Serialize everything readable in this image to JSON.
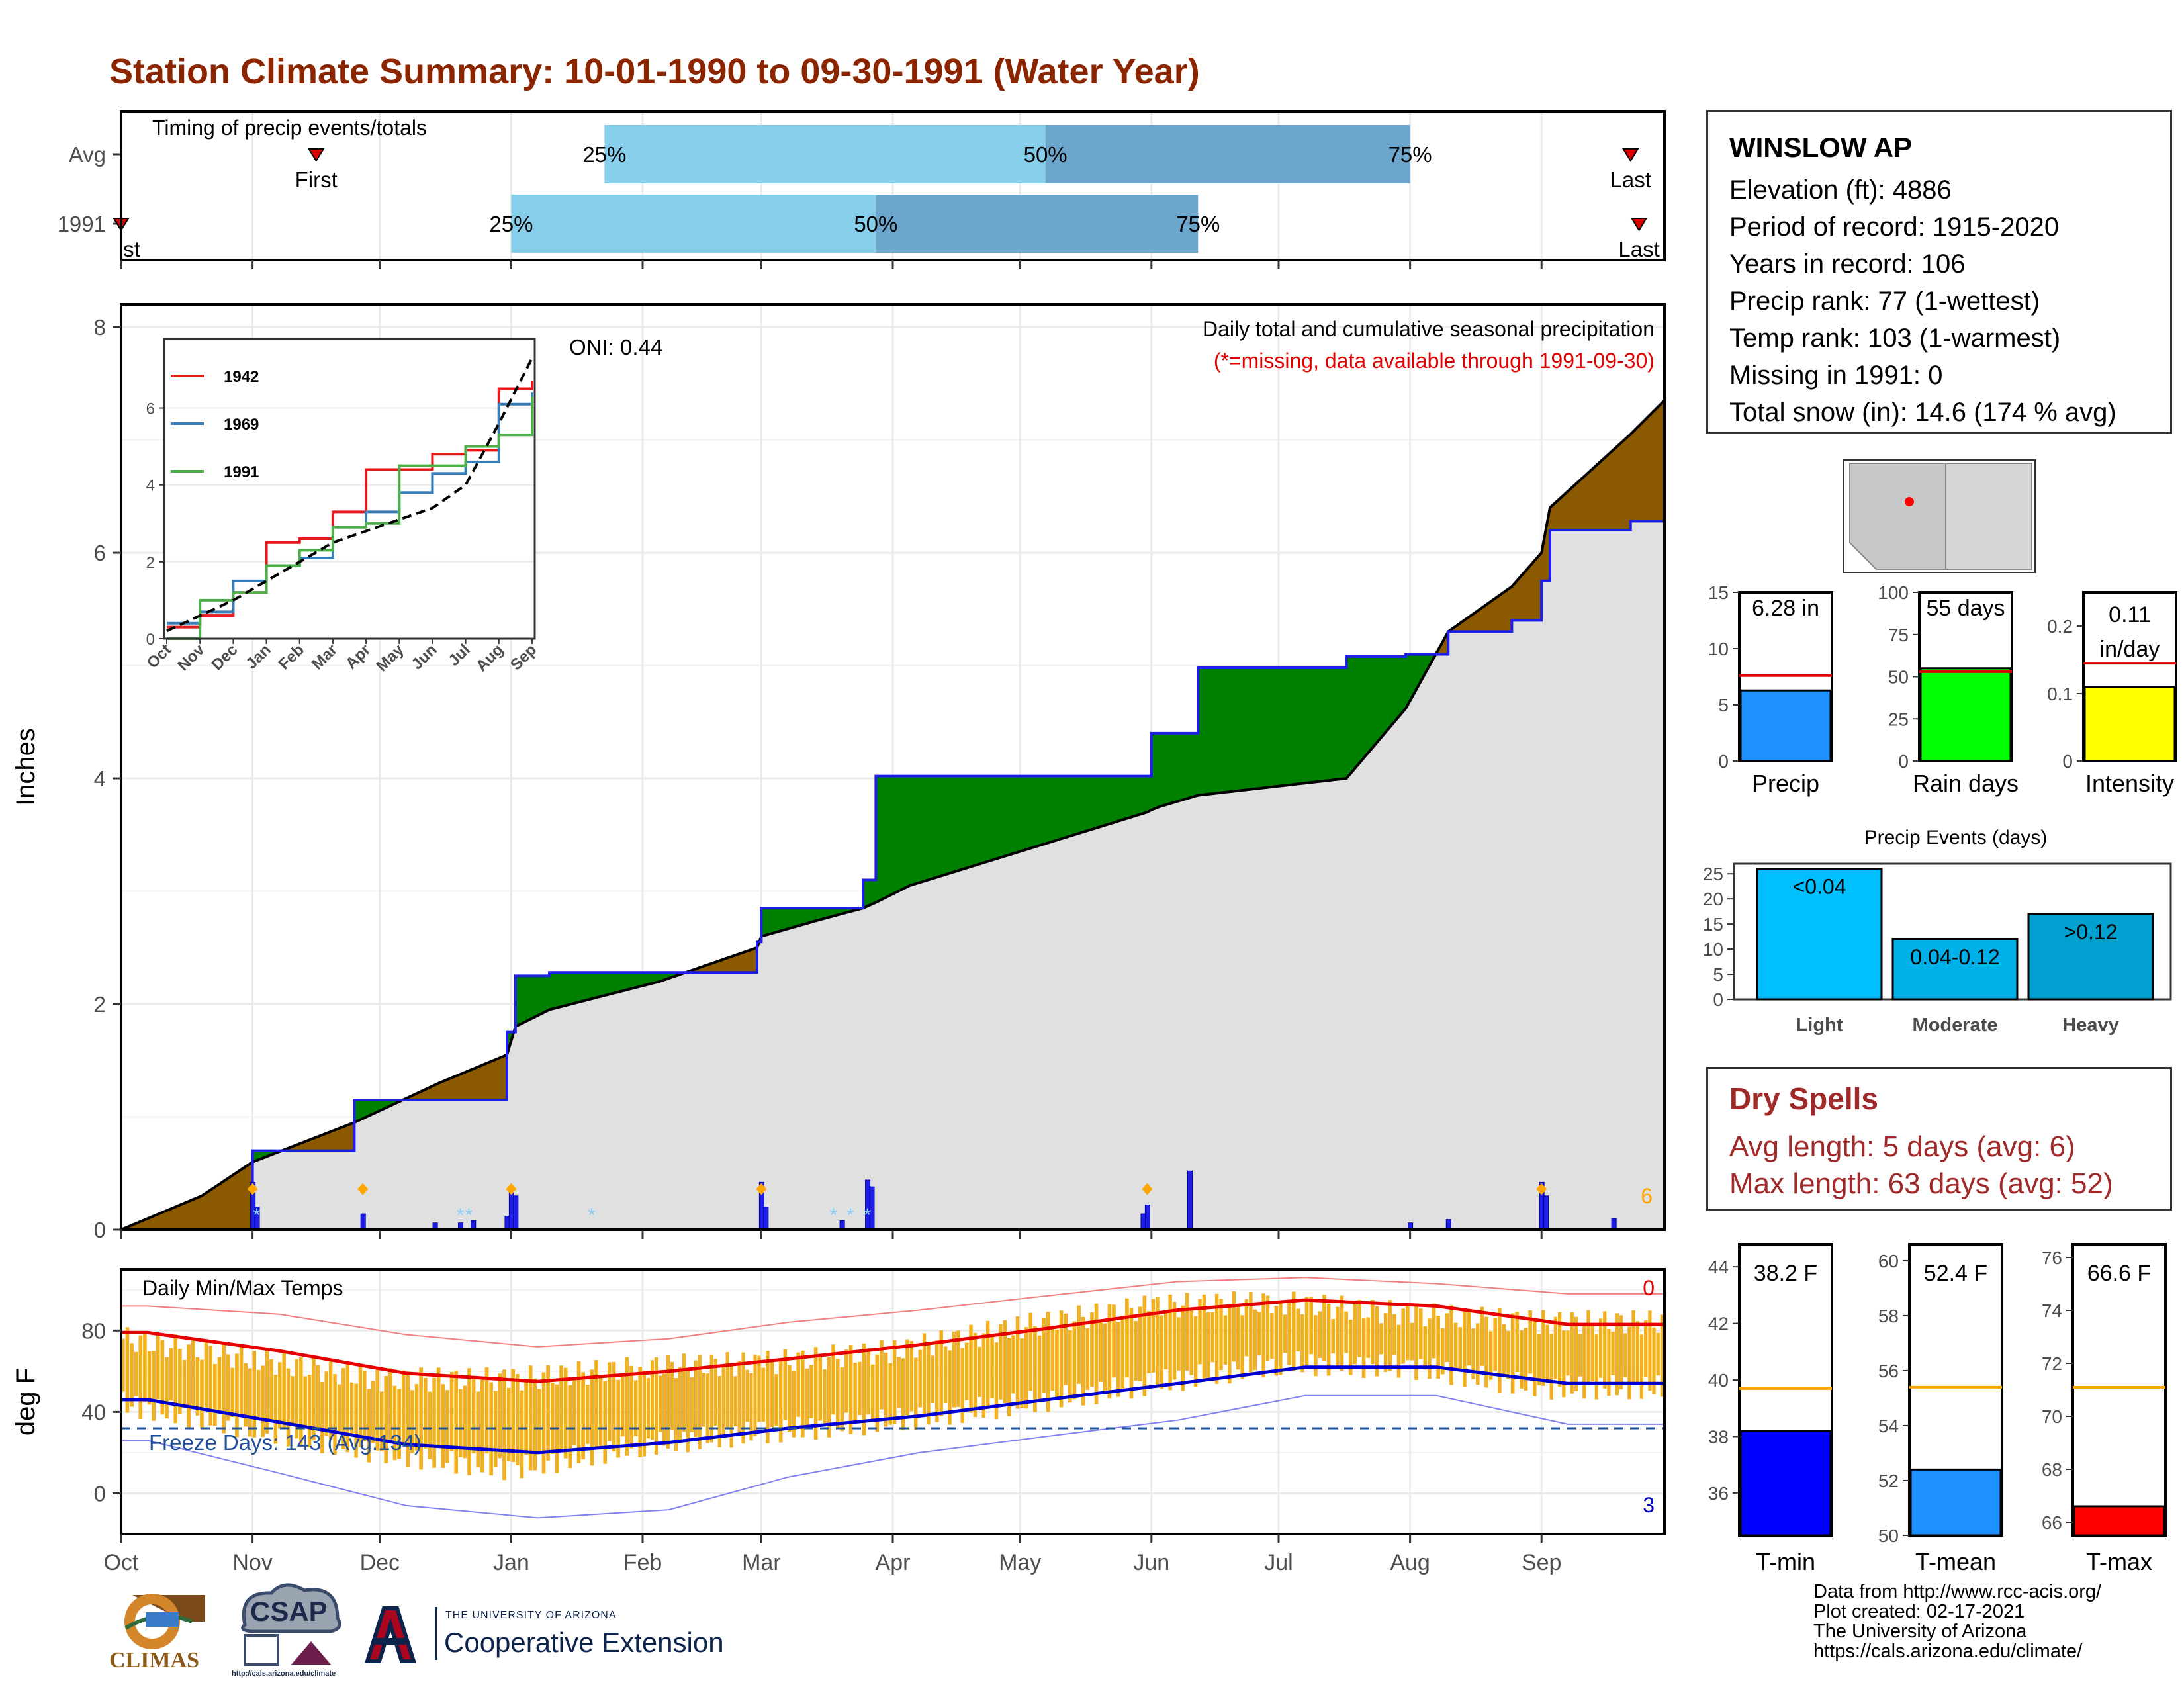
{
  "title": "Station Climate Summary: 10-01-1990 to 09-30-1991 (Water Year)",
  "colors": {
    "title": "#8B2500",
    "bar_light": "#87CEEB",
    "bar_dark": "#6CA6CD",
    "above_avg": "#008000",
    "below_avg": "#8B5A00",
    "cum_fill": "#E0E0E0",
    "precip_bar": "#1E1EE6",
    "snow": "#87CEFA",
    "tmax_line": "#E60000",
    "tmin_line": "#0000D0",
    "temp_bar": "#F0B020",
    "dry_spells": "#A02A2A"
  },
  "timing_panel": {
    "label": "Timing of precip events/totals",
    "rows": [
      {
        "name": "Avg",
        "first": "First",
        "last": "Last",
        "first_date": "1990-11-16",
        "p25": "1991-01-23",
        "p50": "1991-05-07",
        "p75": "1991-08-01",
        "last_date": "1991-09-22",
        "p25_label": "25%",
        "p50_label": "50%",
        "p75_label": "75%"
      },
      {
        "name": "1991",
        "first": "st",
        "last": "Last",
        "first_date": "1990-10-01",
        "p25": "1991-01-01",
        "p50": "1991-03-28",
        "p75": "1991-06-12",
        "last_date": "1991-09-24",
        "p25_label": "25%",
        "p50_label": "50%",
        "p75_label": "75%"
      }
    ]
  },
  "chart_data": [
    {
      "type": "area",
      "name": "cumulative_precip",
      "title": "Daily total and cumulative seasonal precipitation",
      "subtitle": "(*=missing, data available through 1991-09-30)",
      "ylabel": "Inches",
      "ylim": [
        0,
        8.2
      ],
      "yticks": [
        0,
        2,
        4,
        6,
        8
      ],
      "oni_label": "ONI: 0.44",
      "corner_count": "6",
      "x_dates": [
        "1990-10-01",
        "1990-10-20",
        "1990-11-01",
        "1990-11-25",
        "1990-12-15",
        "1990-12-31",
        "1991-01-02",
        "1991-01-10",
        "1991-02-05",
        "1991-02-28",
        "1991-03-01",
        "1991-03-15",
        "1991-03-25",
        "1991-03-28",
        "1991-04-05",
        "1991-05-31",
        "1991-06-01",
        "1991-06-03",
        "1991-06-12",
        "1991-07-17",
        "1991-07-31",
        "1991-08-10",
        "1991-08-25",
        "1991-09-01",
        "1991-09-03",
        "1991-09-22",
        "1991-09-30"
      ],
      "observed": [
        0.0,
        0.0,
        0.7,
        1.15,
        1.15,
        1.75,
        2.25,
        2.28,
        2.28,
        2.55,
        2.85,
        2.85,
        3.1,
        4.02,
        4.02,
        4.02,
        4.4,
        4.4,
        4.98,
        5.08,
        5.1,
        5.3,
        5.4,
        5.75,
        6.2,
        6.28,
        6.28
      ],
      "average": [
        0.0,
        0.3,
        0.6,
        0.95,
        1.3,
        1.55,
        1.8,
        1.95,
        2.2,
        2.5,
        2.6,
        2.75,
        2.85,
        2.9,
        3.05,
        3.7,
        3.72,
        3.75,
        3.85,
        4.0,
        4.62,
        5.3,
        5.7,
        6.0,
        6.4,
        7.05,
        7.35
      ],
      "daily_precip": [
        {
          "date": "1990-11-01",
          "v": 0.42
        },
        {
          "date": "1990-11-02",
          "v": 0.2
        },
        {
          "date": "1990-11-27",
          "v": 0.14
        },
        {
          "date": "1990-12-14",
          "v": 0.06
        },
        {
          "date": "1990-12-20",
          "v": 0.06
        },
        {
          "date": "1990-12-23",
          "v": 0.08
        },
        {
          "date": "1990-12-31",
          "v": 0.12
        },
        {
          "date": "1991-01-01",
          "v": 0.38
        },
        {
          "date": "1991-01-02",
          "v": 0.3
        },
        {
          "date": "1991-03-01",
          "v": 0.42
        },
        {
          "date": "1991-03-02",
          "v": 0.2
        },
        {
          "date": "1991-03-20",
          "v": 0.08
        },
        {
          "date": "1991-03-26",
          "v": 0.44
        },
        {
          "date": "1991-03-27",
          "v": 0.38
        },
        {
          "date": "1991-05-30",
          "v": 0.14
        },
        {
          "date": "1991-05-31",
          "v": 0.22
        },
        {
          "date": "1991-06-10",
          "v": 0.52
        },
        {
          "date": "1991-08-01",
          "v": 0.06
        },
        {
          "date": "1991-08-10",
          "v": 0.09
        },
        {
          "date": "1991-09-01",
          "v": 0.42
        },
        {
          "date": "1991-09-02",
          "v": 0.3
        },
        {
          "date": "1991-09-18",
          "v": 0.1
        }
      ],
      "snow_days": [
        "1990-11-02",
        "1990-12-20",
        "1990-12-22",
        "1991-01-20",
        "1991-03-18",
        "1991-03-22",
        "1991-03-26"
      ],
      "heavy_event_markers": [
        "1990-11-01",
        "1990-11-27",
        "1991-01-01",
        "1991-03-01",
        "1991-05-31",
        "1991-09-01"
      ]
    },
    {
      "type": "line",
      "name": "inset_cumulative",
      "ylim": [
        0,
        7.8
      ],
      "yticks": [
        0,
        2,
        4,
        6
      ],
      "x_months": [
        "Oct",
        "Nov",
        "Dec",
        "Jan",
        "Feb",
        "Mar",
        "Apr",
        "May",
        "Jun",
        "Jul",
        "Aug",
        "Sep"
      ],
      "series": [
        {
          "name": "1942",
          "color": "#E41A1C",
          "values": [
            0.3,
            0.6,
            1.2,
            2.5,
            2.6,
            3.3,
            4.4,
            4.4,
            4.8,
            4.9,
            6.5,
            6.7
          ]
        },
        {
          "name": "1969",
          "color": "#377EB8",
          "values": [
            0.4,
            0.7,
            1.5,
            1.9,
            2.1,
            2.9,
            3.3,
            3.8,
            4.3,
            4.6,
            6.1,
            6.4
          ]
        },
        {
          "name": "1991",
          "color": "#4DAF4A",
          "values": [
            0.0,
            1.0,
            1.2,
            1.9,
            2.3,
            2.9,
            3.0,
            4.5,
            4.5,
            5.0,
            5.3,
            6.3
          ]
        },
        {
          "name": "avg",
          "color": "#000000",
          "values": [
            0.2,
            0.6,
            1.0,
            1.5,
            2.0,
            2.5,
            2.8,
            3.1,
            3.4,
            4.0,
            5.6,
            7.3
          ]
        }
      ]
    },
    {
      "type": "line",
      "name": "daily_temps",
      "title": "Daily Min/Max Temps",
      "ylabel": "deg F",
      "ylim": [
        -20,
        110
      ],
      "yticks": [
        0,
        40,
        80
      ],
      "freeze_label": "Freeze Days: 143 (Avg:134)",
      "freeze_line": 32,
      "tmax_count": "0",
      "tmin_count": "3",
      "x_months": [
        "Oct",
        "Nov",
        "Dec",
        "Jan",
        "Feb",
        "Mar",
        "Apr",
        "May",
        "Jun",
        "Jul",
        "Aug",
        "Sep"
      ],
      "avg_tmax": [
        79,
        70,
        59,
        55,
        60,
        66,
        73,
        81,
        90,
        95,
        92,
        83
      ],
      "avg_tmin": [
        46,
        35,
        24,
        20,
        25,
        32,
        38,
        46,
        54,
        62,
        62,
        54
      ],
      "rec_tmax": [
        92,
        88,
        78,
        72,
        76,
        84,
        90,
        97,
        104,
        106,
        103,
        98
      ],
      "rec_tmin": [
        26,
        10,
        -6,
        -12,
        -8,
        8,
        20,
        28,
        36,
        48,
        48,
        34
      ],
      "obs_tmax": [
        76,
        66,
        56,
        56,
        62,
        64,
        70,
        82,
        92,
        94,
        88,
        84
      ],
      "obs_tmin": [
        44,
        32,
        20,
        12,
        24,
        30,
        36,
        44,
        54,
        64,
        62,
        52
      ]
    },
    {
      "type": "bar",
      "name": "precip_summary",
      "categories": [
        "Precip",
        "Rain days",
        "Intensity"
      ],
      "values": [
        6.28,
        55,
        0.11
      ],
      "averages": [
        7.6,
        53,
        0.145
      ],
      "value_labels": [
        "6.28 in",
        "55 days",
        "0.11 in/day"
      ],
      "ylims": [
        [
          0,
          15
        ],
        [
          0,
          100
        ],
        [
          0,
          0.25
        ]
      ],
      "yticks": [
        [
          0,
          5,
          10,
          15
        ],
        [
          0,
          25,
          50,
          75,
          100
        ],
        [
          0.0,
          0.1,
          0.2
        ]
      ],
      "colors": [
        "#1E90FF",
        "#00FF00",
        "#FFFF00"
      ]
    },
    {
      "type": "bar",
      "name": "precip_events",
      "title": "Precip Events (days)",
      "categories": [
        "Light",
        "Moderate",
        "Heavy"
      ],
      "values": [
        26,
        12,
        17
      ],
      "value_labels": [
        "<0.04",
        "0.04-0.12",
        ">0.12"
      ],
      "ylim": [
        0,
        27
      ],
      "yticks": [
        0,
        5,
        10,
        15,
        20,
        25
      ],
      "colors": [
        "#00BFFF",
        "#00B0E8",
        "#00A0D0"
      ]
    },
    {
      "type": "bar",
      "name": "temp_summary",
      "categories": [
        "T-min",
        "T-mean",
        "T-max"
      ],
      "values": [
        38.2,
        52.4,
        66.6
      ],
      "averages": [
        39.7,
        55.4,
        71.1
      ],
      "value_labels": [
        "38.2 F",
        "52.4 F",
        "66.6 F"
      ],
      "ylims": [
        [
          34.5,
          44.8
        ],
        [
          50,
          60.6
        ],
        [
          65.5,
          76.5
        ]
      ],
      "yticks": [
        [
          36,
          38,
          40,
          42,
          44
        ],
        [
          50,
          52,
          54,
          56,
          58,
          60
        ],
        [
          66,
          68,
          70,
          72,
          74,
          76
        ]
      ],
      "colors": [
        "#0000FF",
        "#1E90FF",
        "#FF0000"
      ]
    }
  ],
  "x_axis_months": [
    "Oct",
    "Nov",
    "Dec",
    "Jan",
    "Feb",
    "Mar",
    "Apr",
    "May",
    "Jun",
    "Jul",
    "Aug",
    "Sep"
  ],
  "station": {
    "name": "WINSLOW AP",
    "lines": [
      "Elevation (ft): 4886",
      "Period of record: 1915-2020",
      "Years in record: 106",
      "Precip rank: 77 (1-wettest)",
      "Temp rank: 103 (1-warmest)",
      "Missing in 1991: 0",
      "Total snow (in): 14.6 (174 % avg)"
    ]
  },
  "dry_spells": {
    "title": "Dry Spells",
    "lines": [
      "Avg length: 5 days (avg: 6)",
      "Max length: 63 days (avg: 52)"
    ]
  },
  "credits": [
    "Data from http://www.rcc-acis.org/",
    "Plot created: 02-17-2021",
    "The University of Arizona",
    "https://cals.arizona.edu/climate/"
  ],
  "logos": {
    "climas": "CLIMAS",
    "csap": "CSAP",
    "csap_url": "http://cals.arizona.edu/climate",
    "ua_small": "THE UNIVERSITY OF ARIZONA",
    "ua_big": "Cooperative Extension"
  }
}
